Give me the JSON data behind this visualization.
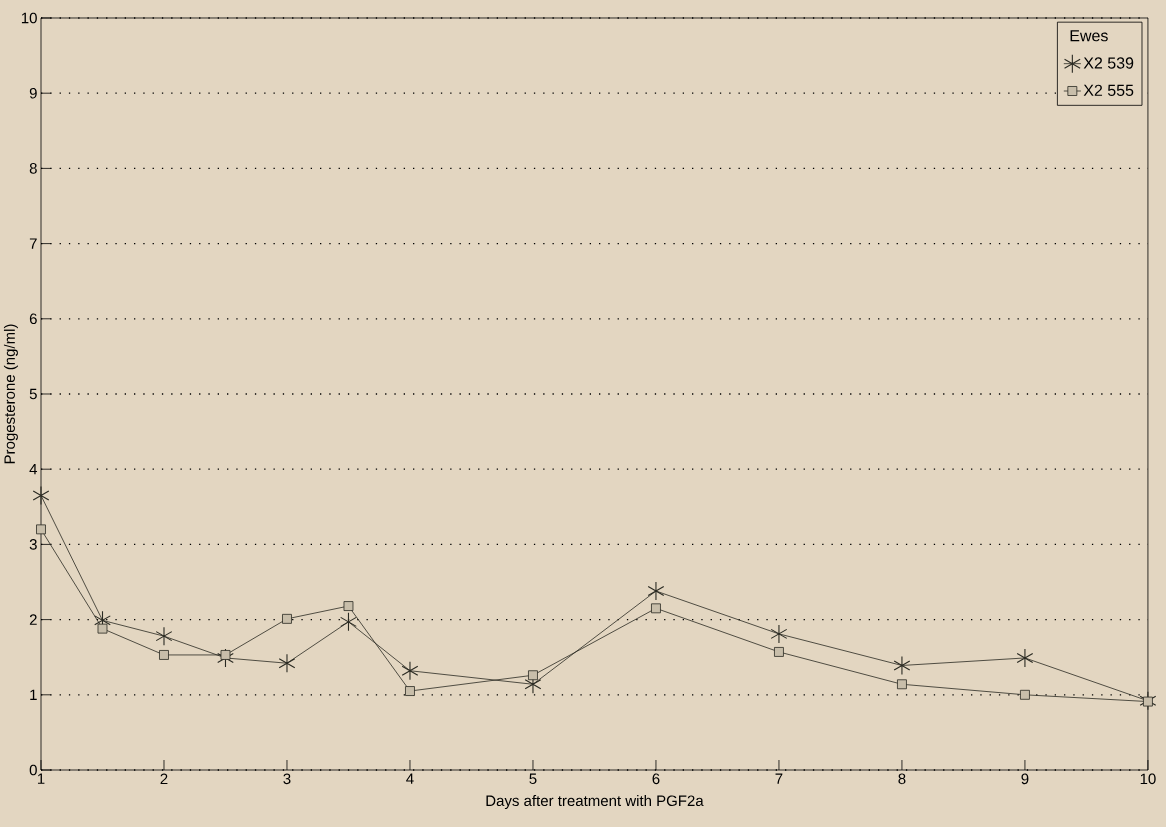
{
  "chart_data": {
    "type": "line",
    "xlabel": "Days after treatment with PGF2a",
    "ylabel": "Progesterone (ng/ml)",
    "legend_title": "Ewes",
    "xlim": [
      1,
      10
    ],
    "ylim": [
      0,
      10
    ],
    "xticks": [
      1,
      2,
      3,
      4,
      5,
      6,
      7,
      8,
      9,
      10
    ],
    "yticks": [
      0,
      1,
      2,
      3,
      4,
      5,
      6,
      7,
      8,
      9,
      10
    ],
    "grid": "y",
    "legend": "top right",
    "line_style": "solid",
    "x": [
      1,
      1.5,
      2,
      2.5,
      3,
      3.5,
      4,
      5,
      6,
      7,
      8,
      9,
      10
    ],
    "series": [
      {
        "name": "X2 539",
        "color": "#2a2a22",
        "marker": "cross",
        "values": [
          3.65,
          1.99,
          1.78,
          1.49,
          1.42,
          1.97,
          1.32,
          1.14,
          2.38,
          1.81,
          1.39,
          1.49,
          0.92
        ]
      },
      {
        "name": "X2 555",
        "color": "#2a2a22",
        "marker": "square",
        "values": [
          3.2,
          1.88,
          1.53,
          1.53,
          2.01,
          2.18,
          1.05,
          1.26,
          2.15,
          1.57,
          1.14,
          1.0,
          0.91
        ]
      }
    ]
  }
}
